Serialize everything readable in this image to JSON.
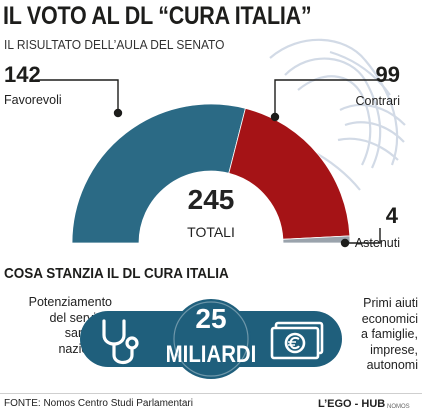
{
  "title": "IL VOTO AL DL “CURA ITALIA”",
  "subtitle": "IL RISULTATO DELL’AULA DEL SENATO",
  "chart_data": {
    "type": "pie",
    "subtype": "semicircle",
    "title": "IL VOTO AL DL “CURA ITALIA”",
    "total": {
      "value": "245",
      "label": "TOTALI"
    },
    "slices": [
      {
        "label": "Favorevoli",
        "value": 142,
        "color": "#2b6a85"
      },
      {
        "label": "Contrari",
        "value": 99,
        "color": "#a51316"
      },
      {
        "label": "Astenuti",
        "value": 4,
        "color": "#9aa3ac"
      }
    ],
    "value_labels": [
      "142",
      "99",
      "4"
    ]
  },
  "section2": {
    "title": "COSA STANZIA IL DL CURA ITALIA",
    "left_text": [
      "Potenziamento",
      "del servizio",
      "sanitario",
      "nazionale"
    ],
    "right_text": [
      "Primi aiuti",
      "economici",
      "a famiglie,",
      "imprese,",
      "autonomi"
    ],
    "amount": "25",
    "amount_unit": "MILIARDI",
    "icons": [
      "stethoscope-icon",
      "money-icon"
    ],
    "accent_color": "#1f5f7c"
  },
  "footer": {
    "source": "FONTE: Nomos Centro Studi Parlamentari",
    "logo": "L’EGO - HUB",
    "logo_sub": "NOMOS"
  }
}
